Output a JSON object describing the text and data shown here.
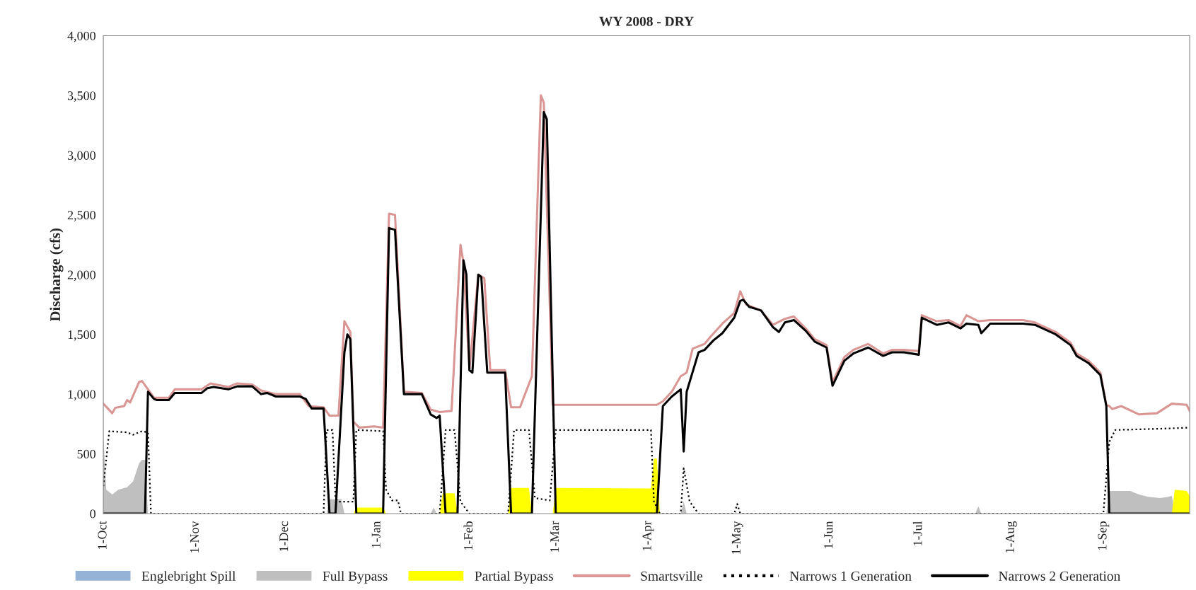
{
  "chart_data": {
    "type": "line",
    "title": "WY 2008 - DRY",
    "ylabel": "Discharge (cfs)",
    "xlim": [
      "2007-10-01",
      "2008-09-30"
    ],
    "xticks": [
      {
        "value": "2007-10-01",
        "label": "1-Oct"
      },
      {
        "value": "2007-11-01",
        "label": "1-Nov"
      },
      {
        "value": "2007-12-01",
        "label": "1-Dec"
      },
      {
        "value": "2008-01-01",
        "label": "1-Jan"
      },
      {
        "value": "2008-02-01",
        "label": "1-Feb"
      },
      {
        "value": "2008-03-01",
        "label": "1-Mar"
      },
      {
        "value": "2008-04-01",
        "label": "1-Apr"
      },
      {
        "value": "2008-05-01",
        "label": "1-May"
      },
      {
        "value": "2008-06-01",
        "label": "1-Jun"
      },
      {
        "value": "2008-07-01",
        "label": "1-Jul"
      },
      {
        "value": "2008-08-01",
        "label": "1-Aug"
      },
      {
        "value": "2008-09-01",
        "label": "1-Sep"
      }
    ],
    "ylim": [
      0,
      4000
    ],
    "yticks": [
      {
        "value": 0,
        "label": "0"
      },
      {
        "value": 500,
        "label": "500"
      },
      {
        "value": 1000,
        "label": "1,000"
      },
      {
        "value": 1500,
        "label": "1,500"
      },
      {
        "value": 2000,
        "label": "2,000"
      },
      {
        "value": 2500,
        "label": "2,500"
      },
      {
        "value": 3000,
        "label": "3,000"
      },
      {
        "value": 3500,
        "label": "3,500"
      },
      {
        "value": 4000,
        "label": "4,000"
      }
    ],
    "grid": false,
    "legend": "bottom",
    "series": [
      {
        "name": "Englebright Spill",
        "type": "area",
        "color": "#95b3d7"
      },
      {
        "name": "Full Bypass",
        "type": "area",
        "color": "#bfbfbf",
        "x": [
          "2007-10-01",
          "2007-10-02",
          "2007-10-04",
          "2007-10-06",
          "2007-10-09",
          "2007-10-11",
          "2007-10-13",
          "2007-10-14",
          "2007-10-15",
          "2007-10-16",
          "2007-12-15",
          "2007-12-16",
          "2007-12-20",
          "2007-12-21",
          "2008-01-19",
          "2008-01-20",
          "2008-01-21",
          "2008-04-12",
          "2008-04-13",
          "2008-04-14",
          "2008-07-20",
          "2008-07-21",
          "2008-07-22",
          "2008-09-02",
          "2008-09-03",
          "2008-09-10",
          "2008-09-13",
          "2008-09-16",
          "2008-09-20",
          "2008-09-23",
          "2008-09-24",
          "2008-09-25",
          "2008-09-30"
        ],
        "values": [
          650,
          200,
          160,
          200,
          220,
          270,
          420,
          450,
          450,
          0,
          0,
          120,
          120,
          0,
          0,
          50,
          0,
          0,
          100,
          0,
          0,
          60,
          0,
          0,
          190,
          190,
          160,
          140,
          130,
          140,
          150,
          0,
          0
        ]
      },
      {
        "name": "Partial Bypass",
        "type": "area",
        "color": "#ffff00",
        "x": [
          "2007-12-24",
          "2007-12-25",
          "2008-01-03",
          "2008-01-04",
          "2008-01-22",
          "2008-01-23",
          "2008-01-27",
          "2008-01-28",
          "2008-02-14",
          "2008-02-15",
          "2008-02-21",
          "2008-02-22",
          "2008-02-29",
          "2008-03-01",
          "2008-04-02",
          "2008-04-03",
          "2008-04-04",
          "2008-04-05",
          "2008-09-24",
          "2008-09-25",
          "2008-09-29",
          "2008-09-30"
        ],
        "values": [
          0,
          50,
          50,
          0,
          0,
          170,
          170,
          0,
          0,
          215,
          215,
          0,
          0,
          215,
          210,
          460,
          460,
          0,
          0,
          200,
          190,
          150
        ]
      },
      {
        "name": "Smartsville",
        "color": "#d99694",
        "line_style": "solid",
        "x": [
          "2007-10-01",
          "2007-10-04",
          "2007-10-05",
          "2007-10-08",
          "2007-10-09",
          "2007-10-10",
          "2007-10-13",
          "2007-10-14",
          "2007-10-16",
          "2007-10-18",
          "2007-10-23",
          "2007-10-25",
          "2007-11-03",
          "2007-11-06",
          "2007-11-12",
          "2007-11-15",
          "2007-11-20",
          "2007-11-23",
          "2007-11-28",
          "2007-12-06",
          "2007-12-09",
          "2007-12-14",
          "2007-12-16",
          "2007-12-19",
          "2007-12-21",
          "2007-12-23",
          "2007-12-24",
          "2007-12-26",
          "2007-12-31",
          "2008-01-03",
          "2008-01-05",
          "2008-01-07",
          "2008-01-10",
          "2008-01-16",
          "2008-01-19",
          "2008-01-22",
          "2008-01-26",
          "2008-01-29",
          "2008-01-30",
          "2008-02-01",
          "2008-02-04",
          "2008-02-06",
          "2008-02-08",
          "2008-02-13",
          "2008-02-15",
          "2008-02-18",
          "2008-02-22",
          "2008-02-25",
          "2008-02-26",
          "2008-02-29",
          "2008-04-04",
          "2008-04-06",
          "2008-04-09",
          "2008-04-12",
          "2008-04-14",
          "2008-04-16",
          "2008-04-20",
          "2008-04-22",
          "2008-04-26",
          "2008-04-30",
          "2008-05-02",
          "2008-05-04",
          "2008-05-09",
          "2008-05-13",
          "2008-05-17",
          "2008-05-20",
          "2008-05-24",
          "2008-05-27",
          "2008-05-31",
          "2008-06-02",
          "2008-06-06",
          "2008-06-09",
          "2008-06-14",
          "2008-06-19",
          "2008-06-22",
          "2008-06-26",
          "2008-07-01",
          "2008-07-02",
          "2008-07-07",
          "2008-07-11",
          "2008-07-15",
          "2008-07-17",
          "2008-07-21",
          "2008-07-25",
          "2008-08-05",
          "2008-08-09",
          "2008-08-16",
          "2008-08-21",
          "2008-08-23",
          "2008-08-27",
          "2008-08-31",
          "2008-09-02",
          "2008-09-03",
          "2008-09-04",
          "2008-09-07",
          "2008-09-13",
          "2008-09-19",
          "2008-09-24",
          "2008-09-29",
          "2008-09-30"
        ],
        "values": [
          920,
          840,
          885,
          900,
          950,
          930,
          1100,
          1110,
          1040,
          970,
          970,
          1040,
          1040,
          1090,
          1060,
          1090,
          1080,
          1030,
          1000,
          1000,
          900,
          890,
          820,
          820,
          1610,
          1520,
          770,
          720,
          730,
          720,
          2510,
          2500,
          1020,
          1010,
          870,
          850,
          860,
          2250,
          2100,
          1210,
          2000,
          1970,
          1200,
          1200,
          890,
          890,
          1150,
          3500,
          3440,
          910,
          910,
          940,
          1020,
          1150,
          1180,
          1380,
          1420,
          1480,
          1590,
          1680,
          1860,
          1750,
          1700,
          1580,
          1630,
          1650,
          1550,
          1460,
          1410,
          1100,
          1310,
          1370,
          1420,
          1340,
          1370,
          1370,
          1360,
          1660,
          1610,
          1620,
          1570,
          1660,
          1610,
          1620,
          1620,
          1600,
          1520,
          1430,
          1340,
          1280,
          1180,
          910,
          900,
          875,
          900,
          830,
          840,
          920,
          910,
          860
        ]
      },
      {
        "name": "Narrows 1 Generation",
        "color": "#000000",
        "line_style": "dotted",
        "x": [
          "2007-10-01",
          "2007-10-03",
          "2007-10-09",
          "2007-10-11",
          "2007-10-14",
          "2007-10-16",
          "2007-10-17",
          "2007-12-14",
          "2007-12-15",
          "2007-12-17",
          "2007-12-18",
          "2007-12-19",
          "2007-12-24",
          "2007-12-25",
          "2008-01-03",
          "2008-01-04",
          "2008-01-06",
          "2008-01-08",
          "2008-01-09",
          "2008-01-22",
          "2008-01-24",
          "2008-01-27",
          "2008-01-29",
          "2008-02-01",
          "2008-02-14",
          "2008-02-16",
          "2008-02-21",
          "2008-02-23",
          "2008-02-28",
          "2008-03-01",
          "2008-04-02",
          "2008-04-03",
          "2008-04-05",
          "2008-04-12",
          "2008-04-13",
          "2008-04-15",
          "2008-04-18",
          "2008-04-30",
          "2008-05-01",
          "2008-05-02",
          "2008-09-01",
          "2008-09-03",
          "2008-09-05",
          "2008-09-20",
          "2008-09-30"
        ],
        "values": [
          230,
          690,
          680,
          660,
          690,
          680,
          0,
          0,
          700,
          700,
          130,
          100,
          100,
          700,
          690,
          200,
          110,
          110,
          0,
          0,
          700,
          700,
          100,
          0,
          0,
          700,
          700,
          130,
          110,
          700,
          700,
          100,
          0,
          0,
          380,
          100,
          0,
          0,
          80,
          0,
          0,
          600,
          700,
          710,
          720
        ]
      },
      {
        "name": "Narrows 2 Generation",
        "color": "#000000",
        "line_style": "solid",
        "x": [
          "2007-10-01",
          "2007-10-15",
          "2007-10-16",
          "2007-10-18",
          "2007-10-19",
          "2007-10-23",
          "2007-10-25",
          "2007-11-03",
          "2007-11-05",
          "2007-11-07",
          "2007-11-12",
          "2007-11-15",
          "2007-11-20",
          "2007-11-23",
          "2007-11-25",
          "2007-11-28",
          "2007-12-06",
          "2007-12-08",
          "2007-12-10",
          "2007-12-14",
          "2007-12-16",
          "2007-12-18",
          "2007-12-21",
          "2007-12-22",
          "2007-12-23",
          "2007-12-25",
          "2008-01-03",
          "2008-01-05",
          "2008-01-07",
          "2008-01-10",
          "2008-01-16",
          "2008-01-19",
          "2008-01-21",
          "2008-01-22",
          "2008-01-24",
          "2008-01-28",
          "2008-01-30",
          "2008-01-31",
          "2008-02-01",
          "2008-02-02",
          "2008-02-04",
          "2008-02-05",
          "2008-02-07",
          "2008-02-13",
          "2008-02-15",
          "2008-02-22",
          "2008-02-26",
          "2008-02-27",
          "2008-03-01",
          "2008-04-04",
          "2008-04-06",
          "2008-04-09",
          "2008-04-12",
          "2008-04-13",
          "2008-04-14",
          "2008-04-18",
          "2008-04-20",
          "2008-04-23",
          "2008-04-26",
          "2008-04-30",
          "2008-05-02",
          "2008-05-03",
          "2008-05-05",
          "2008-05-09",
          "2008-05-13",
          "2008-05-15",
          "2008-05-17",
          "2008-05-20",
          "2008-05-24",
          "2008-05-27",
          "2008-05-31",
          "2008-06-02",
          "2008-06-06",
          "2008-06-09",
          "2008-06-14",
          "2008-06-19",
          "2008-06-22",
          "2008-06-26",
          "2008-07-01",
          "2008-07-02",
          "2008-07-07",
          "2008-07-11",
          "2008-07-15",
          "2008-07-17",
          "2008-07-21",
          "2008-07-22",
          "2008-07-25",
          "2008-08-05",
          "2008-08-09",
          "2008-08-16",
          "2008-08-21",
          "2008-08-23",
          "2008-08-27",
          "2008-08-31",
          "2008-09-02",
          "2008-09-03",
          "2008-09-30"
        ],
        "values": [
          0,
          0,
          1020,
          960,
          950,
          950,
          1010,
          1010,
          1050,
          1060,
          1040,
          1065,
          1065,
          1000,
          1010,
          980,
          980,
          960,
          880,
          880,
          0,
          0,
          1350,
          1500,
          1460,
          0,
          0,
          2390,
          2375,
          1000,
          1000,
          830,
          800,
          820,
          0,
          0,
          2120,
          2000,
          1200,
          1180,
          2000,
          1980,
          1180,
          1180,
          0,
          0,
          3360,
          3300,
          0,
          0,
          900,
          980,
          1040,
          520,
          1020,
          1350,
          1370,
          1450,
          1510,
          1640,
          1780,
          1790,
          1730,
          1700,
          1560,
          1520,
          1600,
          1620,
          1530,
          1440,
          1390,
          1070,
          1280,
          1340,
          1390,
          1320,
          1350,
          1350,
          1330,
          1640,
          1580,
          1600,
          1550,
          1590,
          1580,
          1510,
          1590,
          1590,
          1580,
          1500,
          1410,
          1320,
          1260,
          1160,
          900,
          0,
          0
        ]
      }
    ]
  }
}
